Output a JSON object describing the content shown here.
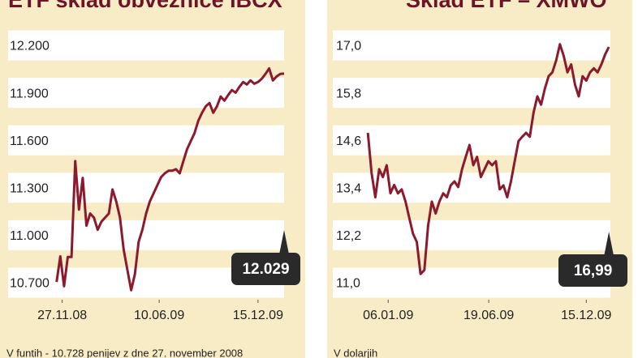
{
  "chart_data": [
    {
      "type": "line",
      "title": "ETF sklad obveznice IBCX",
      "footnote": "V funtih - 10.728 penijev z dne 27. november 2008",
      "series": [
        {
          "color": "#8b1a2e",
          "values": [
            10712,
            10874,
            10685,
            10870,
            10870,
            11476,
            11170,
            11370,
            11068,
            11145,
            11119,
            11042,
            11093,
            11119,
            11145,
            11297,
            11221,
            11119,
            10915,
            10787,
            10660,
            10762,
            10966,
            11042,
            11145,
            11221,
            11272,
            11323,
            11374,
            11399,
            11415,
            11415,
            11425,
            11399,
            11476,
            11552,
            11603,
            11654,
            11731,
            11782,
            11823,
            11843,
            11782,
            11823,
            11884,
            11858,
            11894,
            11925,
            11909,
            11945,
            11976,
            11960,
            11986,
            11965,
            11976,
            11996,
            12027,
            12062,
            11986,
            12011,
            12027,
            12029
          ]
        }
      ],
      "xlim": [
        -13,
        61
      ],
      "xticks": [
        {
          "value": 1.5,
          "label": "27.11.08"
        },
        {
          "value": 27.5,
          "label": "10.06.09"
        },
        {
          "value": 54,
          "label": "15.12.09"
        }
      ],
      "ylim": [
        10600,
        12300
      ],
      "yticks": [
        {
          "value": 10700,
          "label": "10.700"
        },
        {
          "value": 11000,
          "label": "11.000"
        },
        {
          "value": 11300,
          "label": "11.300"
        },
        {
          "value": 11600,
          "label": "11.600"
        },
        {
          "value": 11900,
          "label": "11.900"
        },
        {
          "value": 12200,
          "label": "12.200"
        }
      ],
      "annotation": {
        "value": 12029,
        "label": "12.029"
      }
    },
    {
      "type": "line",
      "title": "Sklad ETF – XMWO",
      "footnote": "V dolarjih",
      "series": [
        {
          "color": "#8b1a2e",
          "values": [
            14.82,
            13.8,
            13.19,
            13.9,
            13.7,
            14.0,
            13.29,
            13.5,
            13.29,
            13.39,
            13.08,
            12.67,
            12.27,
            12.06,
            11.25,
            11.35,
            12.47,
            13.08,
            12.78,
            13.08,
            13.29,
            13.19,
            13.49,
            13.59,
            13.45,
            13.9,
            14.21,
            14.51,
            14.0,
            14.21,
            13.7,
            13.9,
            14.1,
            14.0,
            14.1,
            13.39,
            13.49,
            13.19,
            13.59,
            14.1,
            14.61,
            14.72,
            14.82,
            14.72,
            15.33,
            15.74,
            15.53,
            15.94,
            16.25,
            16.35,
            16.65,
            17.06,
            16.76,
            16.35,
            16.55,
            16.04,
            15.74,
            16.25,
            16.14,
            16.35,
            16.45,
            16.35,
            16.55,
            16.8,
            16.99
          ]
        }
      ],
      "xlim": [
        -9.3,
        64.4
      ],
      "xticks": [
        {
          "value": 5.4,
          "label": "06.01.09"
        },
        {
          "value": 32.1,
          "label": "19.06.09"
        },
        {
          "value": 58,
          "label": "15.12.09"
        }
      ],
      "ylim": [
        10.6,
        17.4
      ],
      "yticks": [
        {
          "value": 11,
          "label": "11,0"
        },
        {
          "value": 12.2,
          "label": "12,2"
        },
        {
          "value": 13.4,
          "label": "13,4"
        },
        {
          "value": 14.6,
          "label": "14,6"
        },
        {
          "value": 15.8,
          "label": "15,8"
        },
        {
          "value": 17,
          "label": "17,0"
        }
      ],
      "annotation": {
        "value": 16.99,
        "label": "16,99"
      }
    }
  ]
}
